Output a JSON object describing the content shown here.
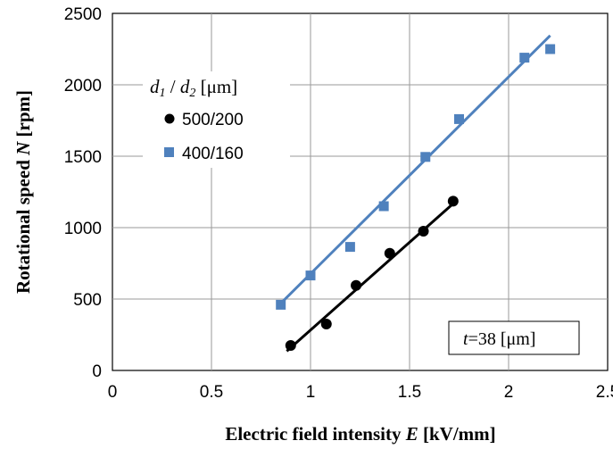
{
  "chart_data": {
    "type": "scatter",
    "x_axis": {
      "title_parts": {
        "text": "Electric field intensity ",
        "italic": "E",
        "unit": " [kV/mm]"
      },
      "range": [
        0,
        2.5
      ],
      "ticks": [
        0,
        0.5,
        1,
        1.5,
        2,
        2.5
      ],
      "tick_labels": [
        "0",
        "0.5",
        "1",
        "1.5",
        "2",
        "2.5"
      ]
    },
    "y_axis": {
      "title_parts": {
        "text": "Rotational speed  ",
        "italic": "N",
        "unit": " [rpm]"
      },
      "range": [
        0,
        2500
      ],
      "ticks": [
        0,
        500,
        1000,
        1500,
        2000,
        2500
      ],
      "tick_labels": [
        "0",
        "500",
        "1000",
        "1500",
        "2000",
        "2500"
      ]
    },
    "grid": {
      "vertical": true,
      "horizontal": true
    },
    "legend": {
      "title_parts": {
        "d1": "d",
        "sub1": "1",
        "sep": " / ",
        "d2": "d",
        "sub2": "2",
        "unit": " [μm]"
      },
      "placement": "top-left"
    },
    "series": [
      {
        "name": "500/200",
        "marker": "circle",
        "color": "#000000",
        "points": [
          {
            "x": 0.9,
            "y": 175
          },
          {
            "x": 1.08,
            "y": 325
          },
          {
            "x": 1.23,
            "y": 595
          },
          {
            "x": 1.4,
            "y": 820
          },
          {
            "x": 1.57,
            "y": 975
          },
          {
            "x": 1.72,
            "y": 1185
          }
        ],
        "fit": {
          "x0": 0.88,
          "y0": 135,
          "x1": 1.73,
          "y1": 1180
        }
      },
      {
        "name": "400/160",
        "marker": "square",
        "color": "#4f81bd",
        "points": [
          {
            "x": 0.85,
            "y": 460
          },
          {
            "x": 1.0,
            "y": 665
          },
          {
            "x": 1.2,
            "y": 865
          },
          {
            "x": 1.37,
            "y": 1150
          },
          {
            "x": 1.58,
            "y": 1495
          },
          {
            "x": 1.75,
            "y": 1760
          },
          {
            "x": 2.08,
            "y": 2190
          },
          {
            "x": 2.21,
            "y": 2250
          }
        ],
        "fit": {
          "x0": 0.85,
          "y0": 470,
          "x1": 2.21,
          "y1": 2345
        }
      }
    ],
    "annotation": {
      "italic": "t",
      "text": "=38 [μm]",
      "placement": "bottom-right"
    }
  }
}
